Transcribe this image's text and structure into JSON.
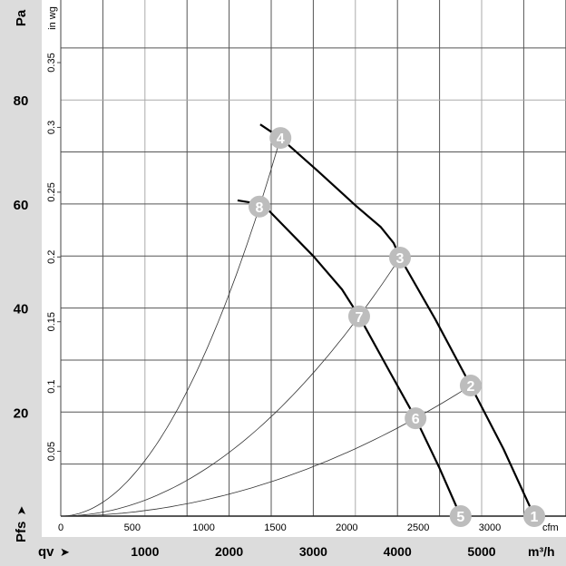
{
  "chart_data": {
    "type": "line",
    "title": "",
    "xlabel": "qv",
    "xunit": "m³/h",
    "xunit_secondary": "cfm",
    "ylabel": "Pfs",
    "yunit": "Pa",
    "yunit_secondary": "in wg",
    "xlim": [
      0,
      6000
    ],
    "ylim": [
      0,
      100
    ],
    "grid": true,
    "x_ticks": [
      "1000",
      "2000",
      "3000",
      "4000",
      "5000"
    ],
    "x_tick_values": [
      1000,
      2000,
      3000,
      4000,
      5000
    ],
    "x_secondary_ticks": [
      "0",
      "500",
      "1000",
      "1500",
      "2000",
      "2500",
      "3000"
    ],
    "x_secondary_tick_values": [
      0,
      500,
      1000,
      1500,
      2000,
      2500,
      3000
    ],
    "y_ticks": [
      "20",
      "40",
      "60",
      "80"
    ],
    "y_tick_values": [
      20,
      40,
      60,
      80
    ],
    "y_secondary_ticks": [
      "0.05",
      "0.1",
      "0.15",
      "0.2",
      "0.25",
      "0.3",
      "0.35"
    ],
    "y_secondary_tick_values": [
      0.05,
      0.1,
      0.15,
      0.2,
      0.25,
      0.3,
      0.35
    ],
    "fan_curves": [
      {
        "x": [
          2370,
          2610,
          3050,
          3510,
          3800,
          3955,
          4030,
          4450,
          4870,
          5260,
          5625
        ],
        "y": [
          75.3,
          72.7,
          66.4,
          59.6,
          55.6,
          52.5,
          49.7,
          37.8,
          25.1,
          12.9,
          0
        ]
      },
      {
        "x": [
          2100,
          2250,
          2360,
          2480,
          3000,
          3340,
          3545,
          3910,
          4215,
          4495,
          4750
        ],
        "y": [
          60.7,
          60.3,
          59.5,
          58.6,
          50.0,
          43.6,
          38.4,
          27.7,
          18.8,
          9.4,
          0
        ]
      }
    ],
    "operating_points": [
      {
        "label": "1",
        "x": 5625,
        "y": 0
      },
      {
        "label": "2",
        "x": 4870,
        "y": 25.1
      },
      {
        "label": "3",
        "x": 4030,
        "y": 49.7
      },
      {
        "label": "4",
        "x": 2610,
        "y": 72.7
      },
      {
        "label": "5",
        "x": 4750,
        "y": 0
      },
      {
        "label": "6",
        "x": 4215,
        "y": 18.8
      },
      {
        "label": "7",
        "x": 3545,
        "y": 38.4
      },
      {
        "label": "8",
        "x": 2360,
        "y": 59.5
      }
    ],
    "system_curves_through_points": [
      "4",
      "3",
      "2"
    ],
    "colors": {
      "band": "#dcdcdc",
      "grid": "#555555",
      "marker": "#bdbdbd",
      "curve": "#000000"
    }
  }
}
